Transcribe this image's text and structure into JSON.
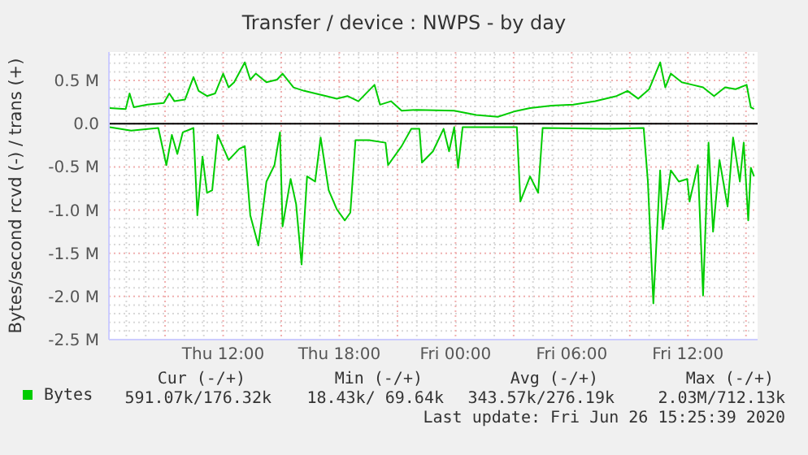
{
  "chart_data": {
    "type": "line",
    "title": "Transfer / device : NWPS - by day",
    "ylabel": "Bytes/second rcvd (-) / trans (+)",
    "xlim": [
      "2020-06-25T06:06",
      "2020-06-26T15:36"
    ],
    "xticks": [
      {
        "value": "2020-06-25T12:00",
        "label": "Thu 12:00"
      },
      {
        "value": "2020-06-25T18:00",
        "label": "Thu 18:00"
      },
      {
        "value": "2020-06-26T00:00",
        "label": "Fri 00:00"
      },
      {
        "value": "2020-06-26T06:00",
        "label": "Fri 06:00"
      },
      {
        "value": "2020-06-26T12:00",
        "label": "Fri 12:00"
      }
    ],
    "ylim": [
      -2.5,
      0.83
    ],
    "yticks": [
      {
        "value": -2.5,
        "label": "-2.5 M"
      },
      {
        "value": -2,
        "label": "-2.0 M"
      },
      {
        "value": -1.5,
        "label": "-1.5 M"
      },
      {
        "value": -1,
        "label": "-1.0 M"
      },
      {
        "value": -0.5,
        "label": "-0.5 M"
      },
      {
        "value": 0,
        "label": "0.0"
      },
      {
        "value": 0.5,
        "label": "0.5 M"
      }
    ],
    "grid": true,
    "legend": "bottom",
    "line_style": "solid",
    "marker": "none",
    "ref_lines": [
      {
        "axis": "y",
        "value": 0,
        "color": "#000000"
      }
    ],
    "series": [
      {
        "name": "Bytes",
        "color": "#00cc00",
        "x": [
          "2020-06-25T06:08",
          "2020-06-25T06:58",
          "2020-06-25T07:10",
          "2020-06-25T07:23",
          "2020-06-25T08:05",
          "2020-06-25T08:56",
          "2020-06-25T09:13",
          "2020-06-25T09:29",
          "2020-06-25T10:02",
          "2020-06-25T10:28",
          "2020-06-25T10:44",
          "2020-06-25T11:10",
          "2020-06-25T11:35",
          "2020-06-25T12:00",
          "2020-06-25T12:17",
          "2020-06-25T12:34",
          "2020-06-25T13:07",
          "2020-06-25T13:24",
          "2020-06-25T13:41",
          "2020-06-25T14:14",
          "2020-06-25T14:47",
          "2020-06-25T15:04",
          "2020-06-25T15:38",
          "2020-06-25T16:11",
          "2020-06-25T16:45",
          "2020-06-25T17:19",
          "2020-06-25T17:52",
          "2020-06-25T18:25",
          "2020-06-25T18:59",
          "2020-06-25T19:49",
          "2020-06-25T20:06",
          "2020-06-25T20:40",
          "2020-06-25T21:13",
          "2020-06-25T21:59",
          "2020-06-25T23:56",
          "2020-06-26T01:04",
          "2020-06-26T02:11",
          "2020-06-26T03:01",
          "2020-06-26T03:51",
          "2020-06-26T04:58",
          "2020-06-26T06:05",
          "2020-06-26T07:13",
          "2020-06-26T08:19",
          "2020-06-26T08:53",
          "2020-06-26T09:26",
          "2020-06-26T10:00",
          "2020-06-26T10:34",
          "2020-06-26T10:50",
          "2020-06-26T11:07",
          "2020-06-26T11:41",
          "2020-06-26T12:14",
          "2020-06-26T12:47",
          "2020-06-26T13:21",
          "2020-06-26T13:55",
          "2020-06-26T14:28",
          "2020-06-26T15:02",
          "2020-06-26T15:15",
          "2020-06-26T15:25"
        ],
        "values": [
          0.18,
          0.17,
          0.35,
          0.19,
          0.22,
          0.24,
          0.35,
          0.26,
          0.28,
          0.54,
          0.38,
          0.32,
          0.35,
          0.58,
          0.42,
          0.48,
          0.71,
          0.51,
          0.58,
          0.48,
          0.51,
          0.58,
          0.42,
          0.38,
          0.35,
          0.32,
          0.29,
          0.32,
          0.26,
          0.45,
          0.22,
          0.26,
          0.15,
          0.16,
          0.15,
          0.1,
          0.08,
          0.14,
          0.18,
          0.21,
          0.22,
          0.26,
          0.32,
          0.38,
          0.29,
          0.4,
          0.71,
          0.42,
          0.58,
          0.48,
          0.45,
          0.42,
          0.32,
          0.42,
          0.4,
          0.45,
          0.19,
          0.17
        ]
      },
      {
        "color": "#00cc00",
        "x": [
          "2020-06-25T06:08",
          "2020-06-25T07:15",
          "2020-06-25T08:39",
          "2020-06-25T09:04",
          "2020-06-25T09:21",
          "2020-06-25T09:38",
          "2020-06-25T09:55",
          "2020-06-25T10:28",
          "2020-06-25T10:40",
          "2020-06-25T10:56",
          "2020-06-25T11:10",
          "2020-06-25T11:26",
          "2020-06-25T11:43",
          "2020-06-25T12:17",
          "2020-06-25T12:50",
          "2020-06-25T13:07",
          "2020-06-25T13:24",
          "2020-06-25T13:49",
          "2020-06-25T14:14",
          "2020-06-25T14:39",
          "2020-06-25T14:56",
          "2020-06-25T15:04",
          "2020-06-25T15:29",
          "2020-06-25T15:46",
          "2020-06-25T16:03",
          "2020-06-25T16:20",
          "2020-06-25T16:45",
          "2020-06-25T17:02",
          "2020-06-25T17:27",
          "2020-06-25T17:52",
          "2020-06-25T18:17",
          "2020-06-25T18:34",
          "2020-06-25T18:50",
          "2020-06-25T19:32",
          "2020-06-25T20:23",
          "2020-06-25T20:31",
          "2020-06-25T21:13",
          "2020-06-25T21:43",
          "2020-06-25T22:08",
          "2020-06-25T22:16",
          "2020-06-25T22:50",
          "2020-06-25T23:23",
          "2020-06-25T23:40",
          "2020-06-25T23:56",
          "2020-06-26T00:08",
          "2020-06-26T00:22",
          "2020-06-26T03:10",
          "2020-06-26T03:21",
          "2020-06-26T03:51",
          "2020-06-26T04:16",
          "2020-06-26T04:30",
          "2020-06-26T07:46",
          "2020-06-26T09:43",
          "2020-06-26T09:56",
          "2020-06-26T10:13",
          "2020-06-26T10:34",
          "2020-06-26T10:42",
          "2020-06-26T11:07",
          "2020-06-26T11:32",
          "2020-06-26T11:58",
          "2020-06-26T12:05",
          "2020-06-26T12:31",
          "2020-06-26T12:47",
          "2020-06-26T13:04",
          "2020-06-26T13:18",
          "2020-06-26T13:38",
          "2020-06-26T14:03",
          "2020-06-26T14:20",
          "2020-06-26T14:41",
          "2020-06-26T14:53",
          "2020-06-26T15:07",
          "2020-06-26T15:15",
          "2020-06-26T15:25"
        ],
        "values": [
          -0.04,
          -0.08,
          -0.05,
          -0.48,
          -0.13,
          -0.35,
          -0.1,
          -0.05,
          -1.06,
          -0.38,
          -0.8,
          -0.77,
          -0.13,
          -0.42,
          -0.29,
          -0.26,
          -1.06,
          -1.41,
          -0.67,
          -0.48,
          -0.1,
          -1.19,
          -0.64,
          -0.93,
          -1.63,
          -0.61,
          -0.67,
          -0.16,
          -0.77,
          -0.99,
          -1.12,
          -1.03,
          -0.19,
          -0.19,
          -0.22,
          -0.48,
          -0.26,
          -0.06,
          -0.06,
          -0.45,
          -0.32,
          -0.06,
          -0.32,
          -0.04,
          -0.51,
          -0.04,
          -0.04,
          -0.9,
          -0.61,
          -0.8,
          -0.05,
          -0.06,
          -0.05,
          -0.67,
          -2.08,
          -0.54,
          -1.22,
          -0.54,
          -0.67,
          -0.64,
          -0.9,
          -0.48,
          -1.99,
          -0.22,
          -1.25,
          -0.42,
          -0.96,
          -0.16,
          -0.67,
          -0.22,
          -1.12,
          -0.51,
          -0.61
        ]
      }
    ],
    "annotations": [
      "Cur (-/+)",
      "Min (-/+)",
      "Avg (-/+)",
      "Max (-/+)",
      "591.07k/176.32k",
      "18.43k/ 69.64k",
      "343.57k/276.19k",
      "2.03M/712.13k",
      "Last update: Fri Jun 26 15:25:39 2020"
    ]
  }
}
